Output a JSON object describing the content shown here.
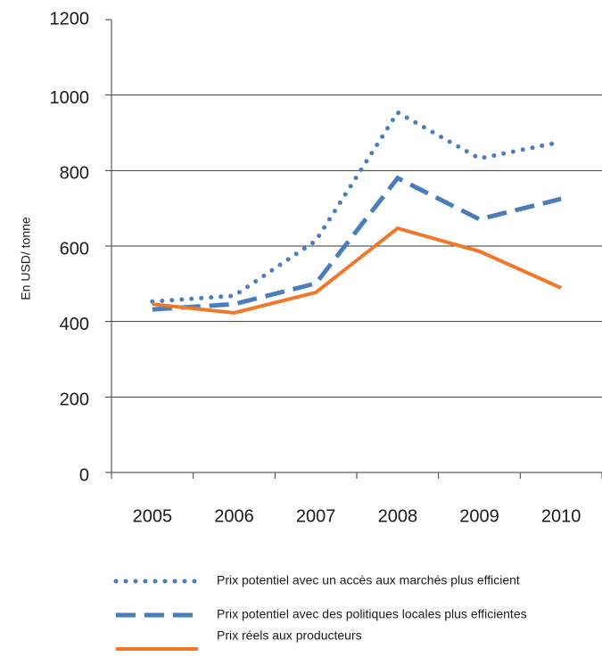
{
  "chart_data": {
    "type": "line",
    "y_label": "En USD/ tonne",
    "categories": [
      "2005",
      "2006",
      "2007",
      "2008",
      "2009",
      "2010"
    ],
    "series": [
      {
        "name": "Prix potentiel avec un accès aux marchés plus efficient",
        "color": "#4a7ebb",
        "style": "dotted",
        "values": [
          453,
          468,
          614,
          954,
          832,
          876
        ]
      },
      {
        "name": "Prix potentiel avec des politiques locales plus efficientes",
        "color": "#4a7ebb",
        "style": "dashed",
        "values": [
          432,
          446,
          501,
          780,
          671,
          725
        ]
      },
      {
        "name": "Prix réels aux producteurs",
        "color": "#f0782a",
        "style": "solid",
        "values": [
          446,
          423,
          477,
          647,
          586,
          489
        ]
      }
    ],
    "ylim": [
      0,
      1200
    ],
    "yticks": [
      0,
      200,
      400,
      600,
      800,
      1000,
      1200
    ],
    "grid": true,
    "legend": "bottom"
  }
}
